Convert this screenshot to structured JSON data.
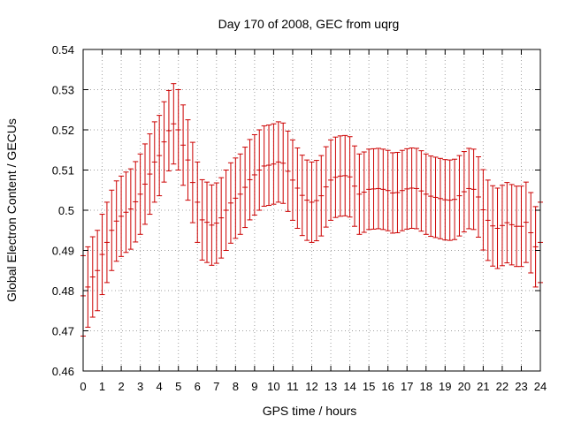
{
  "chart_data": {
    "type": "errorbar",
    "title": "Day 170 of 2008, GEC from uqrg",
    "xlabel": "GPS time / hours",
    "ylabel": "Global Electron Content / GECUs",
    "xlim": [
      0,
      24
    ],
    "ylim": [
      0.46,
      0.54
    ],
    "xticks": [
      "0",
      "1",
      "2",
      "3",
      "4",
      "5",
      "6",
      "7",
      "8",
      "9",
      "10",
      "11",
      "12",
      "13",
      "14",
      "15",
      "16",
      "17",
      "18",
      "19",
      "20",
      "21",
      "22",
      "23",
      "24"
    ],
    "yticks": [
      "0.46",
      "0.47",
      "0.48",
      "0.49",
      "0.5",
      "0.51",
      "0.52",
      "0.53",
      "0.54"
    ],
    "grid": true,
    "series_color": "#cc0000",
    "series": [
      {
        "x": [
          0.0,
          0.25,
          0.5,
          0.75,
          1.0,
          1.25,
          1.5,
          1.75,
          2.0,
          2.25,
          2.5,
          2.75,
          3.0,
          3.25,
          3.5,
          3.75,
          4.0,
          4.25,
          4.5,
          4.75,
          5.0,
          5.25,
          5.5,
          5.75,
          6.0,
          6.25,
          6.5,
          6.75,
          7.0,
          7.25,
          7.5,
          7.75,
          8.0,
          8.25,
          8.5,
          8.75,
          9.0,
          9.25,
          9.5,
          9.75,
          10.0,
          10.25,
          10.5,
          10.75,
          11.0,
          11.25,
          11.5,
          11.75,
          12.0,
          12.25,
          12.5,
          12.75,
          13.0,
          13.25,
          13.5,
          13.75,
          14.0,
          14.25,
          14.5,
          14.75,
          15.0,
          15.25,
          15.5,
          15.75,
          16.0,
          16.25,
          16.5,
          16.75,
          17.0,
          17.25,
          17.5,
          17.75,
          18.0,
          18.25,
          18.5,
          18.75,
          19.0,
          19.25,
          19.5,
          19.75,
          20.0,
          20.25,
          20.5,
          20.75,
          21.0,
          21.25,
          21.5,
          21.75,
          22.0,
          22.25,
          22.5,
          22.75,
          23.0,
          23.25,
          23.5,
          23.75,
          24.0
        ],
        "y": [
          0.4787,
          0.4809,
          0.4834,
          0.485,
          0.489,
          0.492,
          0.495,
          0.4973,
          0.4985,
          0.4995,
          0.5003,
          0.5021,
          0.504,
          0.5065,
          0.509,
          0.512,
          0.5136,
          0.517,
          0.5198,
          0.5215,
          0.52,
          0.5162,
          0.5125,
          0.5069,
          0.502,
          0.4976,
          0.497,
          0.4963,
          0.4968,
          0.4981,
          0.5,
          0.5018,
          0.503,
          0.504,
          0.5057,
          0.5076,
          0.5088,
          0.51,
          0.511,
          0.5112,
          0.5115,
          0.512,
          0.5117,
          0.5097,
          0.5075,
          0.5055,
          0.5037,
          0.5025,
          0.502,
          0.5024,
          0.5036,
          0.5058,
          0.5075,
          0.5082,
          0.5085,
          0.5086,
          0.5083,
          0.506,
          0.504,
          0.5045,
          0.5052,
          0.5053,
          0.5054,
          0.5052,
          0.5049,
          0.5043,
          0.5044,
          0.5049,
          0.5053,
          0.5055,
          0.5054,
          0.5048,
          0.504,
          0.5035,
          0.5032,
          0.5029,
          0.5026,
          0.5025,
          0.5027,
          0.5036,
          0.5046,
          0.5054,
          0.5052,
          0.5033,
          0.5001,
          0.4975,
          0.4961,
          0.4955,
          0.4962,
          0.4969,
          0.4964,
          0.496,
          0.496,
          0.497,
          0.4944,
          0.4909,
          0.492
        ],
        "err": [
          0.01,
          0.01,
          0.01,
          0.01,
          0.01,
          0.01,
          0.01,
          0.01,
          0.01,
          0.01,
          0.01,
          0.01,
          0.01,
          0.01,
          0.01,
          0.01,
          0.01,
          0.01,
          0.01,
          0.01,
          0.01,
          0.01,
          0.01,
          0.01,
          0.01,
          0.01,
          0.01,
          0.01,
          0.01,
          0.01,
          0.01,
          0.01,
          0.01,
          0.01,
          0.01,
          0.01,
          0.01,
          0.01,
          0.01,
          0.01,
          0.01,
          0.01,
          0.01,
          0.01,
          0.01,
          0.01,
          0.01,
          0.01,
          0.01,
          0.01,
          0.01,
          0.01,
          0.01,
          0.01,
          0.01,
          0.01,
          0.01,
          0.01,
          0.01,
          0.01,
          0.01,
          0.01,
          0.01,
          0.01,
          0.01,
          0.01,
          0.01,
          0.01,
          0.01,
          0.01,
          0.01,
          0.01,
          0.01,
          0.01,
          0.01,
          0.01,
          0.01,
          0.01,
          0.01,
          0.01,
          0.01,
          0.01,
          0.01,
          0.01,
          0.01,
          0.01,
          0.01,
          0.01,
          0.01,
          0.01,
          0.01,
          0.01,
          0.01,
          0.01,
          0.01,
          0.01,
          0.01
        ]
      }
    ]
  }
}
